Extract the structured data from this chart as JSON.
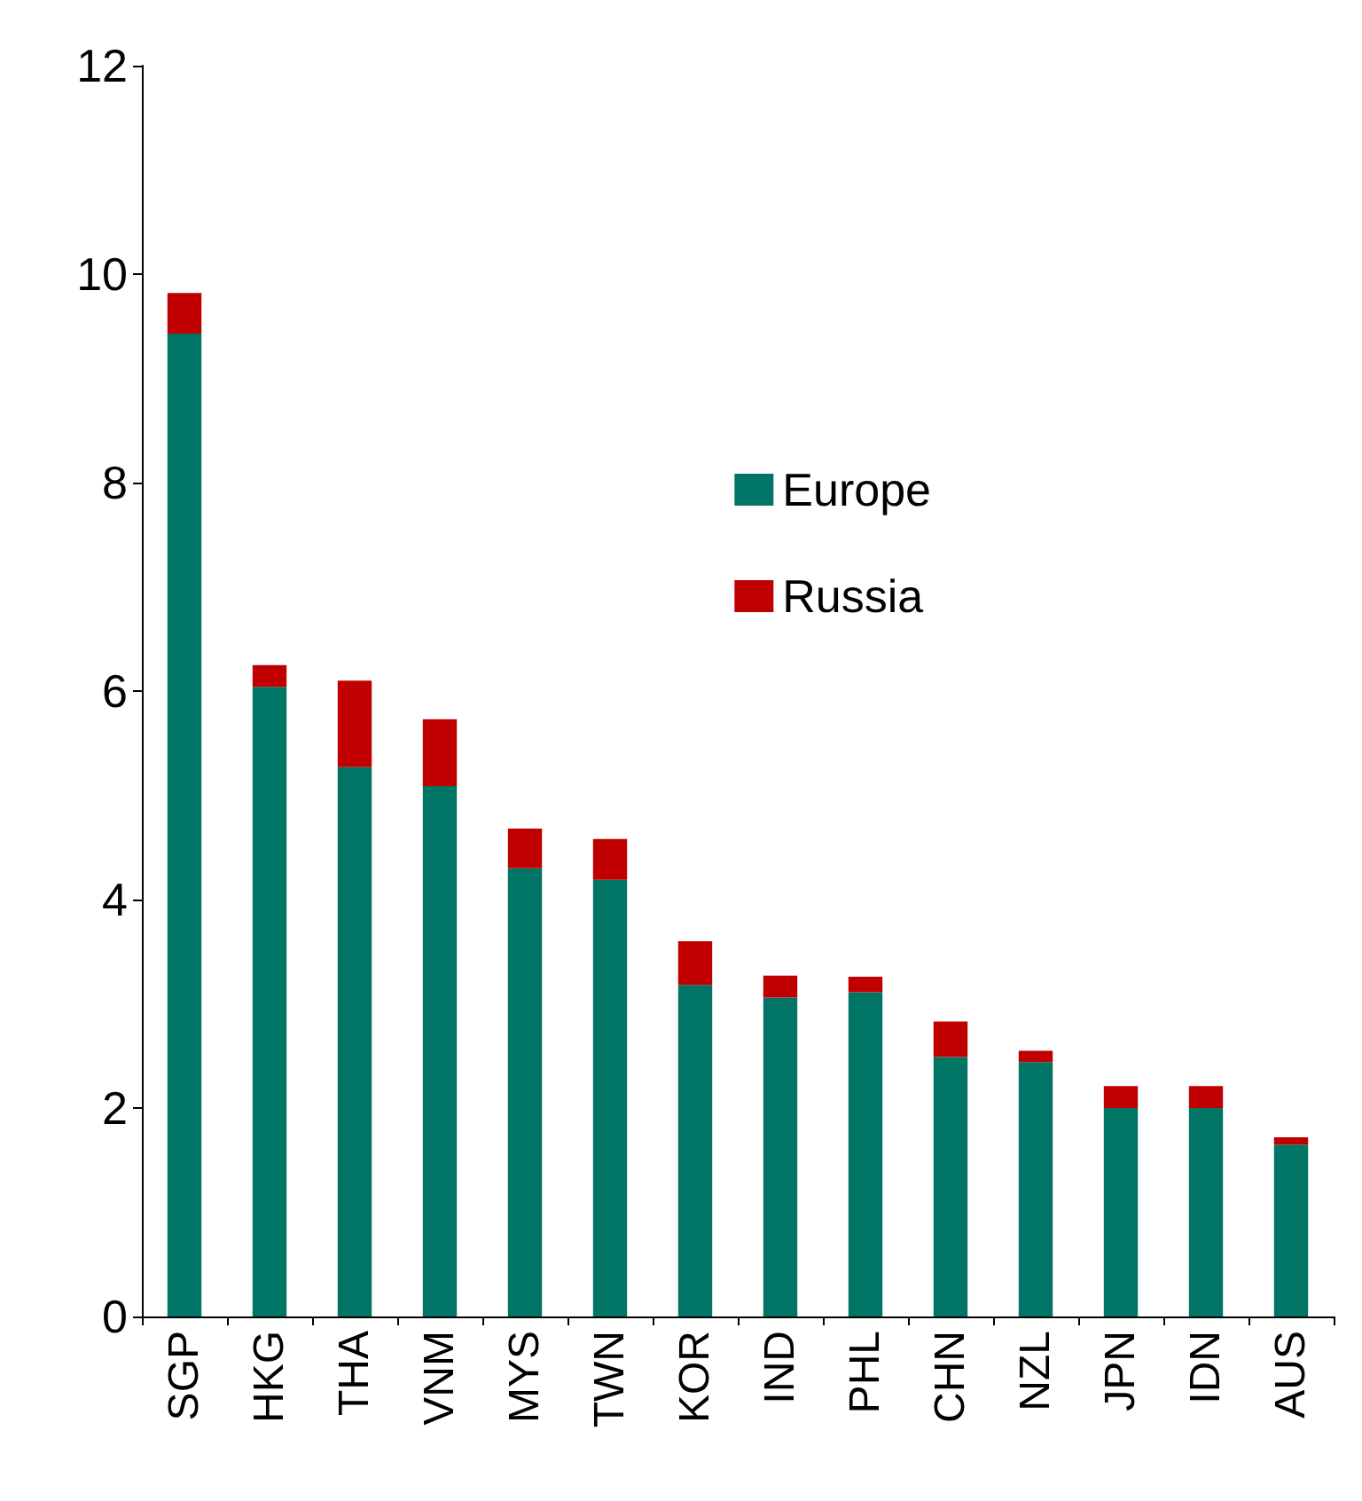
{
  "chart_data": {
    "type": "bar",
    "stacked": true,
    "categories": [
      "SGP",
      "HKG",
      "THA",
      "VNM",
      "MYS",
      "TWN",
      "KOR",
      "IND",
      "PHL",
      "CHN",
      "NZL",
      "JPN",
      "IDN",
      "AUS"
    ],
    "series": [
      {
        "name": "Europe",
        "color": "#007566",
        "values": [
          9.43,
          6.04,
          5.27,
          5.09,
          4.3,
          4.19,
          3.18,
          3.06,
          3.11,
          2.49,
          2.44,
          2.0,
          2.0,
          1.65
        ]
      },
      {
        "name": "Russia",
        "color": "#c00000",
        "values": [
          0.39,
          0.21,
          0.83,
          0.64,
          0.38,
          0.39,
          0.42,
          0.21,
          0.15,
          0.34,
          0.11,
          0.21,
          0.21,
          0.07
        ]
      }
    ],
    "ylim": [
      0,
      12
    ],
    "yticks": [
      0,
      2,
      4,
      6,
      8,
      10,
      12
    ],
    "grid": false,
    "legend": "top right"
  }
}
